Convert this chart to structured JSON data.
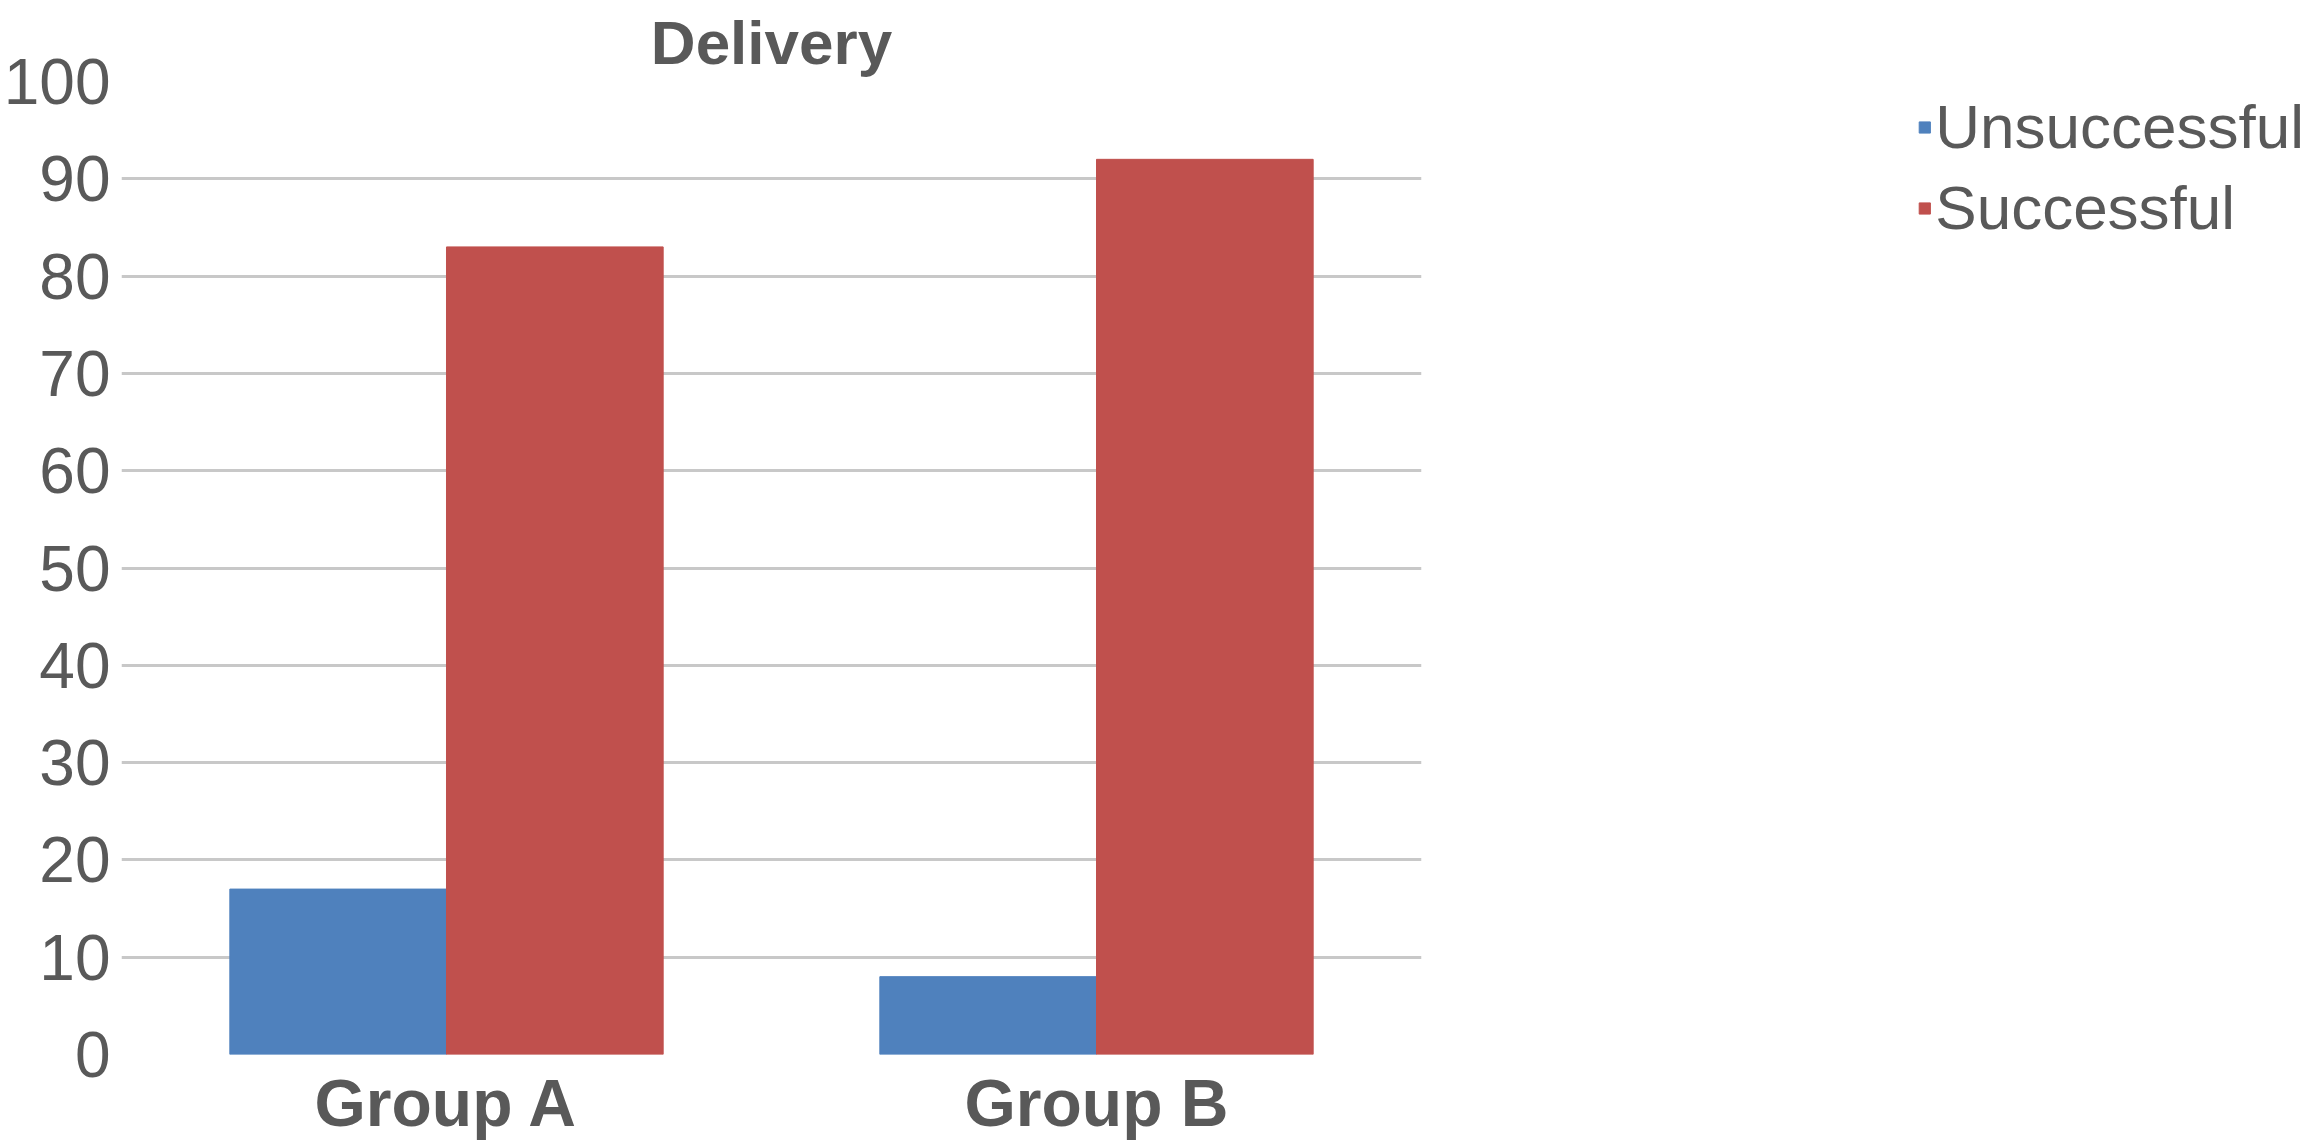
{
  "chart_data": {
    "type": "bar",
    "title": "Delivery",
    "categories": [
      "Group A",
      "Group B"
    ],
    "series": [
      {
        "name": "Unsuccessful",
        "color": "#4f81bd",
        "values": [
          17,
          8
        ]
      },
      {
        "name": "Successful",
        "color": "#c0504d",
        "values": [
          83,
          92
        ]
      }
    ],
    "ylim": [
      0,
      100
    ],
    "yticks": [
      0,
      10,
      20,
      30,
      40,
      50,
      60,
      70,
      80,
      90,
      100
    ],
    "grid": "y",
    "legend": "right"
  }
}
